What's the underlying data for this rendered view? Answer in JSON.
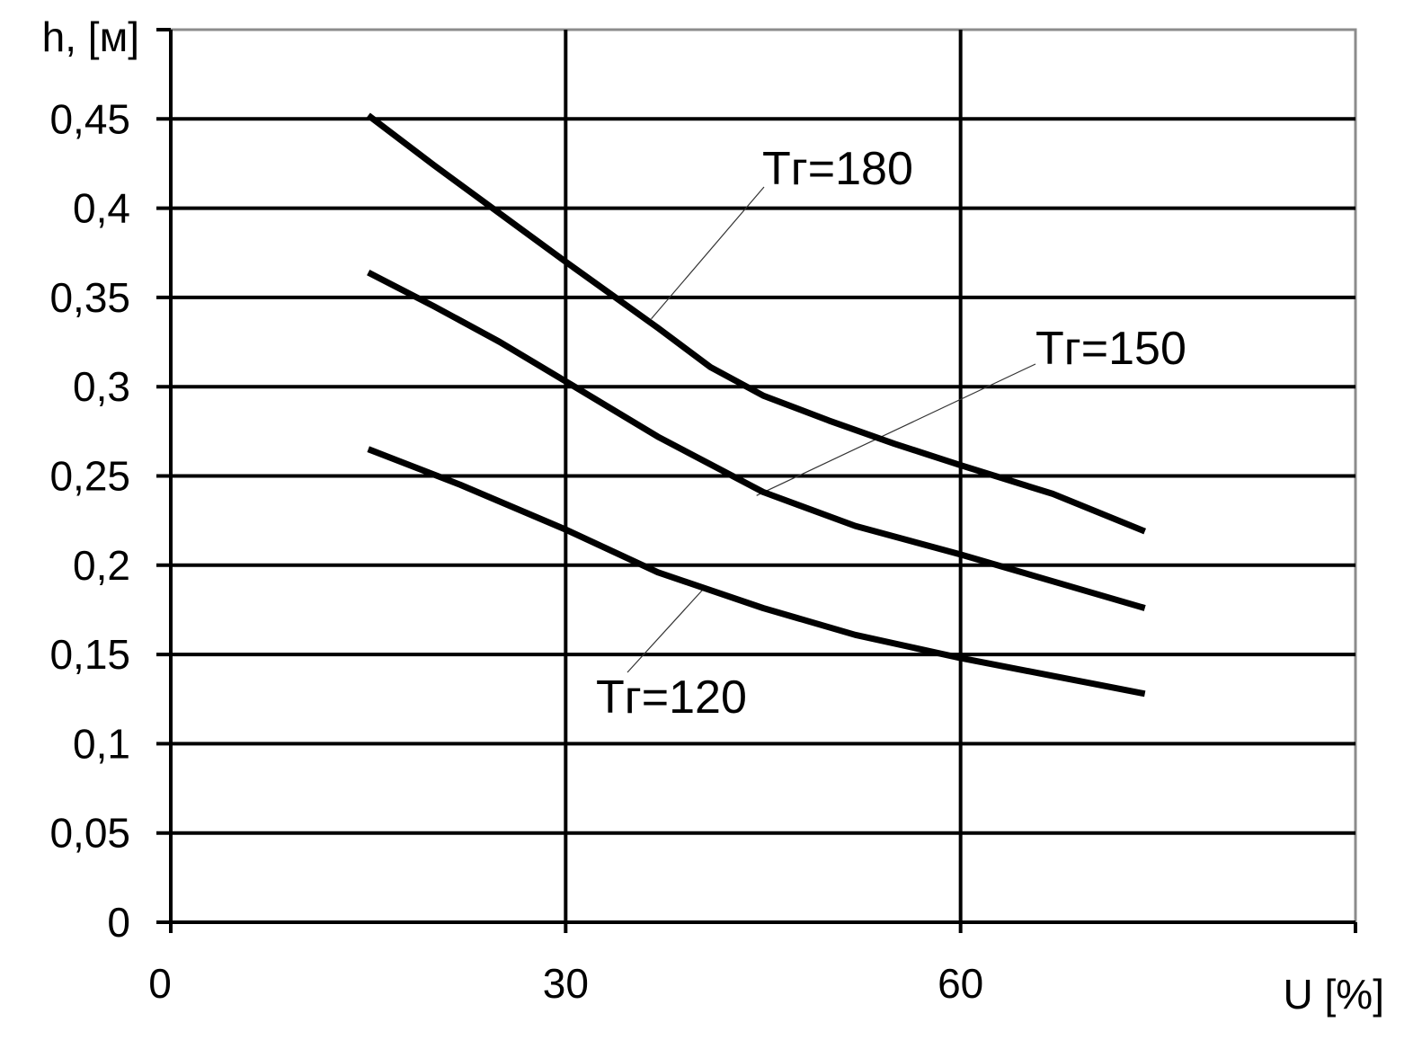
{
  "chart_data": {
    "type": "line",
    "title": "",
    "xlabel": "U [%]",
    "ylabel": "h, [м]",
    "xlim": [
      0,
      90
    ],
    "ylim": [
      0,
      0.5
    ],
    "xticks": [
      {
        "value": 0,
        "label": "0"
      },
      {
        "value": 30,
        "label": "30"
      },
      {
        "value": 60,
        "label": "60"
      }
    ],
    "yticks": [
      {
        "value": 0,
        "label": "0"
      },
      {
        "value": 0.05,
        "label": "0,05"
      },
      {
        "value": 0.1,
        "label": "0,1"
      },
      {
        "value": 0.15,
        "label": "0,15"
      },
      {
        "value": 0.2,
        "label": "0,2"
      },
      {
        "value": 0.25,
        "label": "0,25"
      },
      {
        "value": 0.3,
        "label": "0,3"
      },
      {
        "value": 0.35,
        "label": "0,35"
      },
      {
        "value": 0.4,
        "label": "0,4"
      },
      {
        "value": 0.45,
        "label": "0,45"
      }
    ],
    "grid": true,
    "legend": "none",
    "series": [
      {
        "name": "Tг=180",
        "x": [
          15,
          20,
          25,
          30,
          37,
          41,
          45,
          50,
          55,
          60,
          67,
          74
        ],
        "y": [
          0.452,
          0.424,
          0.397,
          0.37,
          0.333,
          0.311,
          0.295,
          0.281,
          0.268,
          0.256,
          0.24,
          0.219
        ]
      },
      {
        "name": "Tг=150",
        "x": [
          15,
          20,
          25,
          30,
          37,
          45,
          52,
          60,
          67,
          74
        ],
        "y": [
          0.364,
          0.345,
          0.325,
          0.303,
          0.272,
          0.241,
          0.222,
          0.206,
          0.191,
          0.176
        ]
      },
      {
        "name": "Tг=120",
        "x": [
          15,
          22,
          30,
          37,
          45,
          52,
          60,
          67,
          74
        ],
        "y": [
          0.265,
          0.245,
          0.22,
          0.196,
          0.176,
          0.161,
          0.148,
          0.138,
          0.128
        ]
      }
    ],
    "annotations": [
      {
        "series": "Tг=180",
        "text": "Tг=180",
        "pointer_x": 36.5,
        "pointer_y": 0.338
      },
      {
        "series": "Tг=150",
        "text": "Tг=150",
        "pointer_x": 44.5,
        "pointer_y": 0.239
      },
      {
        "series": "Tг=120",
        "text": "Tг=120",
        "pointer_x": 40.5,
        "pointer_y": 0.187
      }
    ]
  }
}
